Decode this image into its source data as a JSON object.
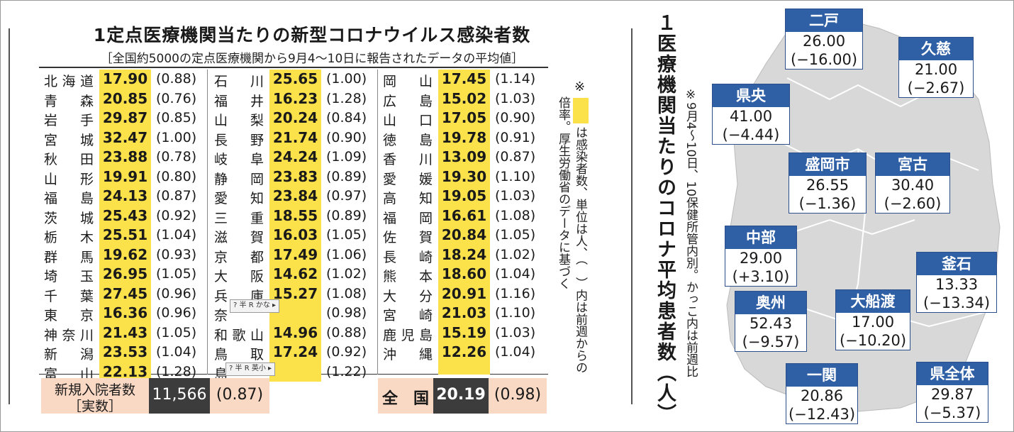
{
  "title": "1定点医療機関当たりの新型コロナウイルス感染者数",
  "subtitle": "［全国約5000の定点医療機関から9月4〜10日に報告されたデータの平均値］",
  "prefectures": [
    [
      {
        "pref": "北海道",
        "value": "17.90",
        "prev": "(0.88)"
      },
      {
        "pref": "青森",
        "value": "20.85",
        "prev": "(0.76)"
      },
      {
        "pref": "岩手",
        "value": "29.87",
        "prev": "(0.85)"
      },
      {
        "pref": "宮城",
        "value": "32.47",
        "prev": "(1.00)"
      },
      {
        "pref": "秋田",
        "value": "23.88",
        "prev": "(0.78)"
      },
      {
        "pref": "山形",
        "value": "19.91",
        "prev": "(0.80)"
      },
      {
        "pref": "福島",
        "value": "24.13",
        "prev": "(0.87)"
      },
      {
        "pref": "茨城",
        "value": "25.43",
        "prev": "(0.92)"
      },
      {
        "pref": "栃木",
        "value": "25.51",
        "prev": "(1.04)"
      },
      {
        "pref": "群馬",
        "value": "19.62",
        "prev": "(0.93)"
      },
      {
        "pref": "埼玉",
        "value": "26.95",
        "prev": "(1.05)"
      },
      {
        "pref": "千葉",
        "value": "27.45",
        "prev": "(0.96)"
      },
      {
        "pref": "東京",
        "value": "16.36",
        "prev": "(0.96)"
      },
      {
        "pref": "神奈川",
        "value": "21.43",
        "prev": "(1.05)"
      },
      {
        "pref": "新潟",
        "value": "23.53",
        "prev": "(1.04)"
      },
      {
        "pref": "富山",
        "value": "22.13",
        "prev": "(1.28)"
      }
    ],
    [
      {
        "pref": "石川",
        "value": "25.65",
        "prev": "(1.00)"
      },
      {
        "pref": "福井",
        "value": "16.23",
        "prev": "(1.28)"
      },
      {
        "pref": "山梨",
        "value": "20.24",
        "prev": "(0.84)"
      },
      {
        "pref": "長野",
        "value": "21.74",
        "prev": "(0.90)"
      },
      {
        "pref": "岐阜",
        "value": "24.24",
        "prev": "(1.09)"
      },
      {
        "pref": "静岡",
        "value": "23.83",
        "prev": "(0.89)"
      },
      {
        "pref": "愛知",
        "value": "23.84",
        "prev": "(0.97)"
      },
      {
        "pref": "三重",
        "value": "18.55",
        "prev": "(0.89)"
      },
      {
        "pref": "滋賀",
        "value": "16.03",
        "prev": "(1.05)"
      },
      {
        "pref": "京都",
        "value": "17.49",
        "prev": "(1.06)"
      },
      {
        "pref": "大阪",
        "value": "14.62",
        "prev": "(1.02)"
      },
      {
        "pref": "兵庫",
        "value": "15.27",
        "prev": "(1.08)"
      },
      {
        "pref": "奈",
        "value": "",
        "prev": "(0.98)"
      },
      {
        "pref": "和歌山",
        "value": "14.96",
        "prev": "(0.88)"
      },
      {
        "pref": "鳥取",
        "value": "17.24",
        "prev": "(0.92)"
      },
      {
        "pref": "島",
        "value": "",
        "prev": "(1.22)"
      }
    ],
    [
      {
        "pref": "岡山",
        "value": "17.45",
        "prev": "(1.14)"
      },
      {
        "pref": "広島",
        "value": "15.02",
        "prev": "(1.03)"
      },
      {
        "pref": "山口",
        "value": "17.05",
        "prev": "(0.90)"
      },
      {
        "pref": "徳島",
        "value": "19.78",
        "prev": "(0.91)"
      },
      {
        "pref": "香川",
        "value": "13.09",
        "prev": "(0.87)"
      },
      {
        "pref": "愛媛",
        "value": "19.30",
        "prev": "(1.10)"
      },
      {
        "pref": "高知",
        "value": "19.05",
        "prev": "(1.03)"
      },
      {
        "pref": "福岡",
        "value": "16.61",
        "prev": "(1.08)"
      },
      {
        "pref": "佐賀",
        "value": "20.84",
        "prev": "(1.05)"
      },
      {
        "pref": "長崎",
        "value": "18.24",
        "prev": "(1.02)"
      },
      {
        "pref": "熊本",
        "value": "18.60",
        "prev": "(1.04)"
      },
      {
        "pref": "大分",
        "value": "20.91",
        "prev": "(1.16)"
      },
      {
        "pref": "宮崎",
        "value": "21.03",
        "prev": "(1.10)"
      },
      {
        "pref": "鹿児島",
        "value": "15.19",
        "prev": "(1.03)"
      },
      {
        "pref": "沖縄",
        "value": "12.26",
        "prev": "(1.04)"
      }
    ]
  ],
  "hospital": {
    "label_line1": "新規入院者数",
    "label_line2": "［実数］",
    "value": "11,566",
    "prev": "(0.87)"
  },
  "national": {
    "label": "全　国",
    "value": "20.19",
    "prev": "(0.98)"
  },
  "note": {
    "mark": "※",
    "text_a": "は感染者数、単位は人、（　）内は前週からの",
    "text_b": "倍率。厚生労働省のデータに基づく"
  },
  "ime_bars": [
    "?",
    "かな",
    "英小"
  ],
  "ime_labels": [
    "半",
    "R"
  ],
  "iwate_title": "１医療機関当たりのコロナ平均患者数（人）",
  "iwate_note": "※9月4〜10日、10保健所管内別。かっこ内は前週比",
  "regions": [
    {
      "name": "二戸",
      "value": "26.00",
      "prev": "(−16.00)"
    },
    {
      "name": "久慈",
      "value": "21.00",
      "prev": "(−2.67)"
    },
    {
      "name": "県央",
      "value": "41.00",
      "prev": "(−4.44)"
    },
    {
      "name": "盛岡市",
      "value": "26.55",
      "prev": "(−1.36)"
    },
    {
      "name": "宮古",
      "value": "30.40",
      "prev": "(−2.60)"
    },
    {
      "name": "中部",
      "value": "29.00",
      "prev": "(+3.10)"
    },
    {
      "name": "釜石",
      "value": "13.33",
      "prev": "(−13.34)"
    },
    {
      "name": "奥州",
      "value": "52.43",
      "prev": "(−9.57)"
    },
    {
      "name": "大船渡",
      "value": "17.00",
      "prev": "(−10.20)"
    },
    {
      "name": "一関",
      "value": "20.86",
      "prev": "(−12.43)"
    },
    {
      "name": "県全体",
      "value": "29.87",
      "prev": "(−5.37)"
    }
  ],
  "colors": {
    "highlight": "#fbe24a",
    "peach": "#f9d8c4",
    "dark": "#3c3c3c",
    "map_blue": "#2f5fa4",
    "map_fill": "#d8d8d8"
  }
}
